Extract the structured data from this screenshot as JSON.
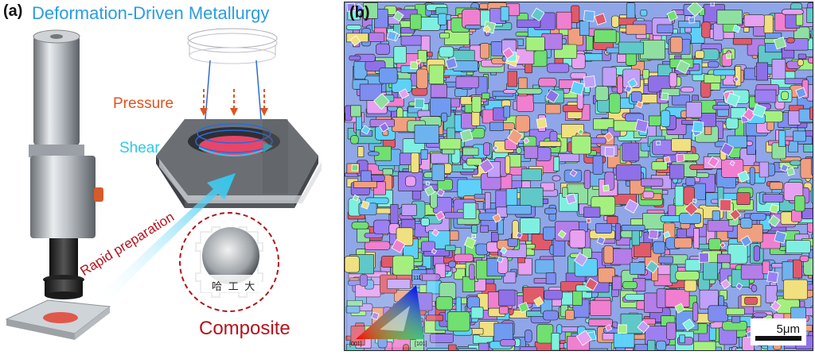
{
  "panel_a": {
    "label": "(a)",
    "title": "Deformation-Driven Metallurgy",
    "pressure_label": "Pressure",
    "shear_label": "Shear",
    "rapid_label": "Rapid preparation",
    "composite_label": "Composite",
    "sample_text": "哈 工 大",
    "colors": {
      "title": "#2b9de0",
      "pressure": "#e0531e",
      "shear": "#2ec9e6",
      "composite": "#b3141c"
    }
  },
  "panel_b": {
    "label": "(b)",
    "scale_bar_label": "5μm",
    "ipf_corner_001": "[001]",
    "ipf_corner_101": "[101]",
    "ipf_corner_111": "[111]"
  }
}
